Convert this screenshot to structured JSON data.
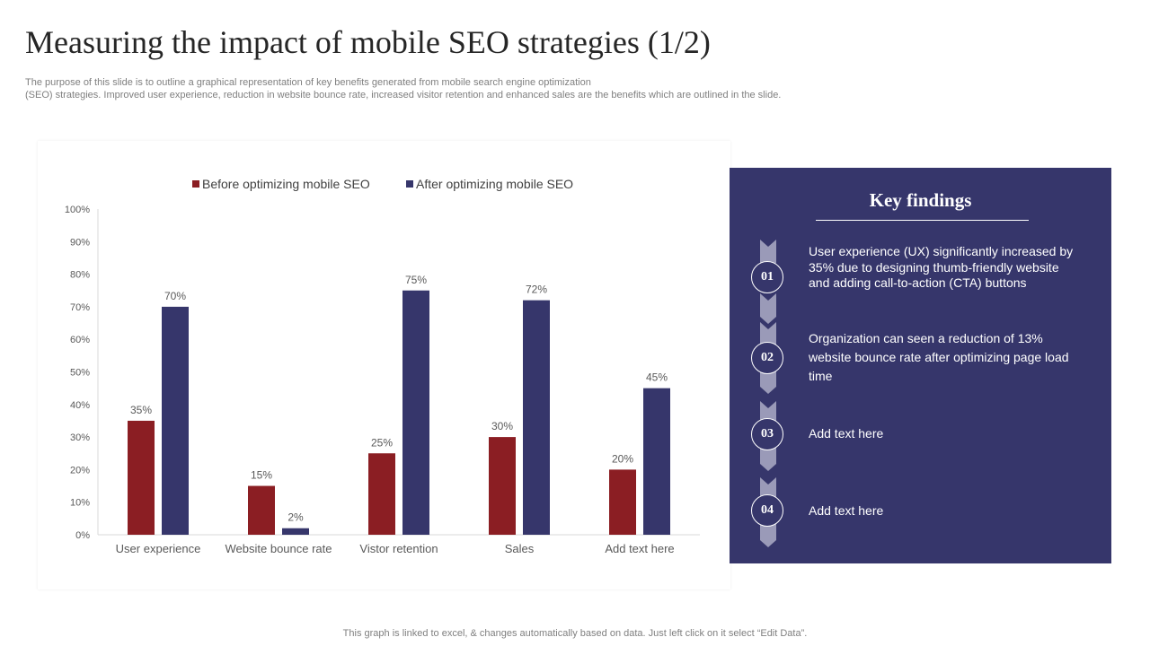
{
  "page": {
    "title": "Measuring the impact of mobile SEO strategies (1/2)",
    "subtitle_line1": "The purpose of this slide is to outline a graphical representation of key benefits generated from mobile search engine optimization",
    "subtitle_line2": "(SEO) strategies. Improved user experience, reduction in website bounce rate, increased visitor retention and enhanced sales are the benefits which are outlined in the slide.",
    "footer": "This graph is linked to excel, & changes automatically based on data. Just left click on it select “Edit Data”."
  },
  "colors": {
    "before": "#8b1e23",
    "after": "#36366b",
    "panel": "#36366b",
    "chevron": "#9a9ab8"
  },
  "chart_data": {
    "type": "bar",
    "categories": [
      "User experience",
      "Website bounce rate",
      "Vistor retention",
      "Sales",
      "Add text here"
    ],
    "series": [
      {
        "name": "Before optimizing mobile SEO",
        "values": [
          35,
          15,
          25,
          30,
          20
        ]
      },
      {
        "name": "After optimizing mobile SEO",
        "values": [
          70,
          2,
          75,
          72,
          45
        ]
      }
    ],
    "yticks": [
      "0%",
      "10%",
      "20%",
      "30%",
      "40%",
      "50%",
      "60%",
      "70%",
      "80%",
      "90%",
      "100%"
    ],
    "ylim": [
      0,
      100
    ],
    "value_suffix": "%",
    "legend": "top-center",
    "title": "",
    "xlabel": "",
    "ylabel": "",
    "grid": false
  },
  "findings": {
    "title": "Key findings",
    "items": [
      {
        "number": "01",
        "text": "User experience (UX) significantly increased by 35% due to designing thumb-friendly website and adding call-to-action (CTA) buttons"
      },
      {
        "number": "02",
        "text": "Organization can seen a reduction of 13% website bounce rate after optimizing page load time"
      },
      {
        "number": "03",
        "text": "Add text here"
      },
      {
        "number": "04",
        "text": "Add text here"
      }
    ]
  }
}
